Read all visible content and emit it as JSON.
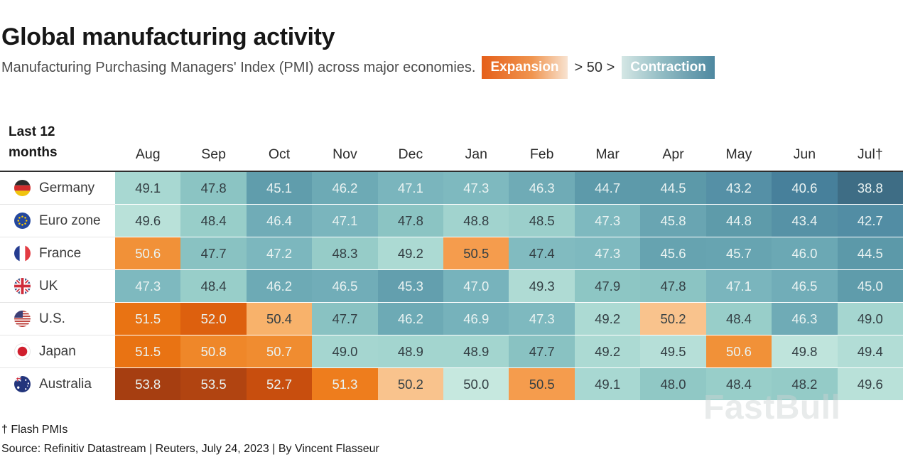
{
  "header": {
    "title": "Global manufacturing activity",
    "subtitle": "Manufacturing Purchasing Managers' Index (PMI) across major economies.",
    "legend": {
      "expansion_label": "Expansion",
      "threshold_text": "> 50 >",
      "contraction_label": "Contraction"
    }
  },
  "table": {
    "corner_line1": "Last 12",
    "corner_line2": "months",
    "months": [
      "Aug",
      "Sep",
      "Oct",
      "Nov",
      "Dec",
      "Jan",
      "Feb",
      "Mar",
      "Apr",
      "May",
      "Jun",
      "Jul†"
    ],
    "rows": [
      {
        "country": "Germany",
        "flag": "de"
      },
      {
        "country": "Euro zone",
        "flag": "eu"
      },
      {
        "country": "France",
        "flag": "fr"
      },
      {
        "country": "UK",
        "flag": "uk"
      },
      {
        "country": "U.S.",
        "flag": "us"
      },
      {
        "country": "Japan",
        "flag": "jp"
      },
      {
        "country": "Australia",
        "flag": "au"
      }
    ]
  },
  "footer": {
    "footnote": "† Flash PMIs",
    "source": "Source: Refinitiv Datastream | Reuters, July 24, 2023 | By Vincent Flasseur"
  },
  "watermark": "FastBull",
  "chart_data": {
    "type": "heatmap",
    "title": "Global manufacturing activity",
    "subtitle": "Manufacturing Purchasing Managers' Index (PMI) across major economies.",
    "x_categories": [
      "Aug",
      "Sep",
      "Oct",
      "Nov",
      "Dec",
      "Jan",
      "Feb",
      "Mar",
      "Apr",
      "May",
      "Jun",
      "Jul†"
    ],
    "threshold": 50,
    "legend": {
      "above_50": "Expansion",
      "below_50": "Contraction"
    },
    "series": [
      {
        "name": "Germany",
        "values": [
          49.1,
          47.8,
          45.1,
          46.2,
          47.1,
          47.3,
          46.3,
          44.7,
          44.5,
          43.2,
          40.6,
          38.8
        ]
      },
      {
        "name": "Euro zone",
        "values": [
          49.6,
          48.4,
          46.4,
          47.1,
          47.8,
          48.8,
          48.5,
          47.3,
          45.8,
          44.8,
          43.4,
          42.7
        ]
      },
      {
        "name": "France",
        "values": [
          50.6,
          47.7,
          47.2,
          48.3,
          49.2,
          50.5,
          47.4,
          47.3,
          45.6,
          45.7,
          46.0,
          44.5
        ]
      },
      {
        "name": "UK",
        "values": [
          47.3,
          48.4,
          46.2,
          46.5,
          45.3,
          47.0,
          49.3,
          47.9,
          47.8,
          47.1,
          46.5,
          45.0
        ]
      },
      {
        "name": "U.S.",
        "values": [
          51.5,
          52.0,
          50.4,
          47.7,
          46.2,
          46.9,
          47.3,
          49.2,
          50.2,
          48.4,
          46.3,
          49.0
        ]
      },
      {
        "name": "Japan",
        "values": [
          51.5,
          50.8,
          50.7,
          49.0,
          48.9,
          48.9,
          47.7,
          49.2,
          49.5,
          50.6,
          49.8,
          49.4
        ]
      },
      {
        "name": "Australia",
        "values": [
          53.8,
          53.5,
          52.7,
          51.3,
          50.2,
          50.0,
          50.5,
          49.1,
          48.0,
          48.4,
          48.2,
          49.6
        ]
      }
    ],
    "color_scale": {
      "split": 50.1,
      "contraction_stops": [
        [
          38.8,
          "#3e6d85"
        ],
        [
          40.6,
          "#47809b"
        ],
        [
          42.7,
          "#528da4"
        ],
        [
          45.0,
          "#5f9cab"
        ],
        [
          47.0,
          "#77b3bc"
        ],
        [
          48.0,
          "#90c8c5"
        ],
        [
          49.0,
          "#a5d6d0"
        ],
        [
          50.0,
          "#c6e8df"
        ]
      ],
      "expansion_stops": [
        [
          50.2,
          "#f9c38d"
        ],
        [
          50.4,
          "#f8b26b"
        ],
        [
          50.5,
          "#f59c4d"
        ],
        [
          50.6,
          "#f19138"
        ],
        [
          50.8,
          "#ef8729"
        ],
        [
          51.3,
          "#ee7d1d"
        ],
        [
          51.5,
          "#e97313"
        ],
        [
          52.0,
          "#dd600e"
        ],
        [
          52.7,
          "#c84e0e"
        ],
        [
          53.5,
          "#b14411"
        ],
        [
          53.8,
          "#a63e11"
        ]
      ],
      "dark_text_min": 47.35,
      "dark_text_max": 50.55,
      "text_dark": "#343f44",
      "text_light": "#eaf3f2"
    }
  }
}
